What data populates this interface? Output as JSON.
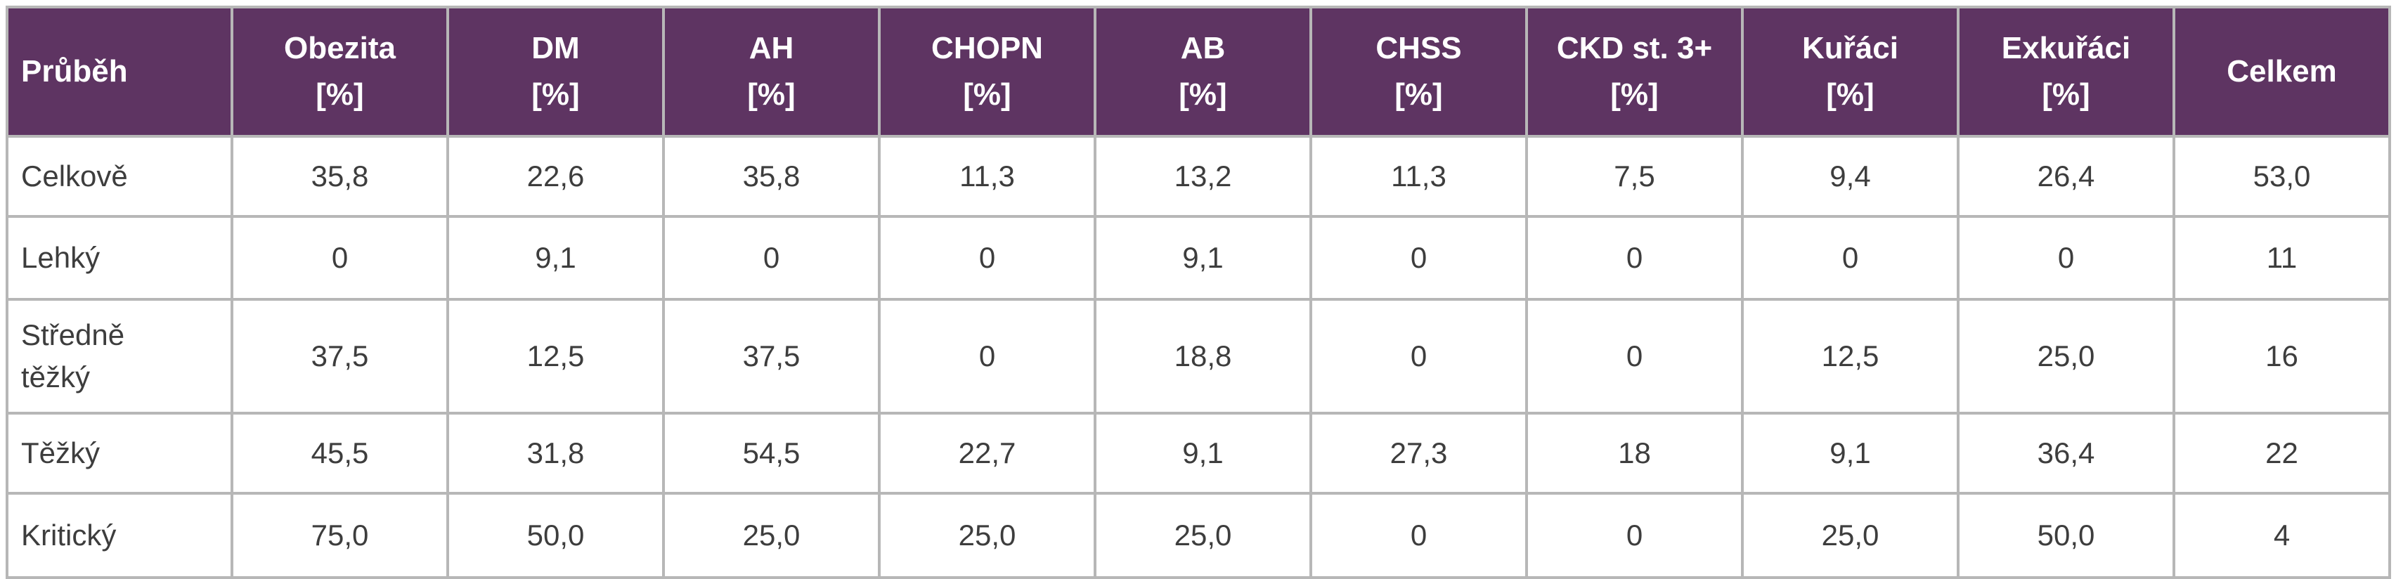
{
  "table": {
    "header": {
      "first": "Průběh",
      "columns": [
        {
          "name": "Obezita",
          "unit": "[%]"
        },
        {
          "name": "DM",
          "unit": "[%]"
        },
        {
          "name": "AH",
          "unit": "[%]"
        },
        {
          "name": "CHOPN",
          "unit": "[%]"
        },
        {
          "name": "AB",
          "unit": "[%]"
        },
        {
          "name": "CHSS",
          "unit": "[%]"
        },
        {
          "name": "CKD st. 3+",
          "unit": "[%]"
        },
        {
          "name": "Kuřáci",
          "unit": "[%]"
        },
        {
          "name": "Exkuřáci",
          "unit": "[%]"
        },
        {
          "name": "Celkem",
          "unit": ""
        }
      ]
    },
    "rows": [
      {
        "label": "Celkově",
        "label_lines": [
          "Celkově"
        ],
        "values": [
          "35,8",
          "22,6",
          "35,8",
          "11,3",
          "13,2",
          "11,3",
          "7,5",
          "9,4",
          "26,4",
          "53,0"
        ]
      },
      {
        "label": "Lehký",
        "label_lines": [
          "Lehký"
        ],
        "values": [
          "0",
          "9,1",
          "0",
          "0",
          "9,1",
          "0",
          "0",
          "0",
          "0",
          "11"
        ]
      },
      {
        "label": "Středně těžký",
        "label_lines": [
          "Středně",
          "těžký"
        ],
        "values": [
          "37,5",
          "12,5",
          "37,5",
          "0",
          "18,8",
          "0",
          "0",
          "12,5",
          "25,0",
          "16"
        ]
      },
      {
        "label": "Těžký",
        "label_lines": [
          "Těžký"
        ],
        "values": [
          "45,5",
          "31,8",
          "54,5",
          "22,7",
          "9,1",
          "27,3",
          "18",
          "9,1",
          "36,4",
          "22"
        ]
      },
      {
        "label": "Kritický",
        "label_lines": [
          "Kritický"
        ],
        "values": [
          "75,0",
          "50,0",
          "25,0",
          "25,0",
          "25,0",
          "0",
          "0",
          "25,0",
          "50,0",
          "4"
        ]
      }
    ],
    "colors": {
      "header_bg": "#5e3462",
      "header_text": "#ffffff",
      "border": "#b7b7b7",
      "cell_text": "#3d3d3d"
    }
  }
}
